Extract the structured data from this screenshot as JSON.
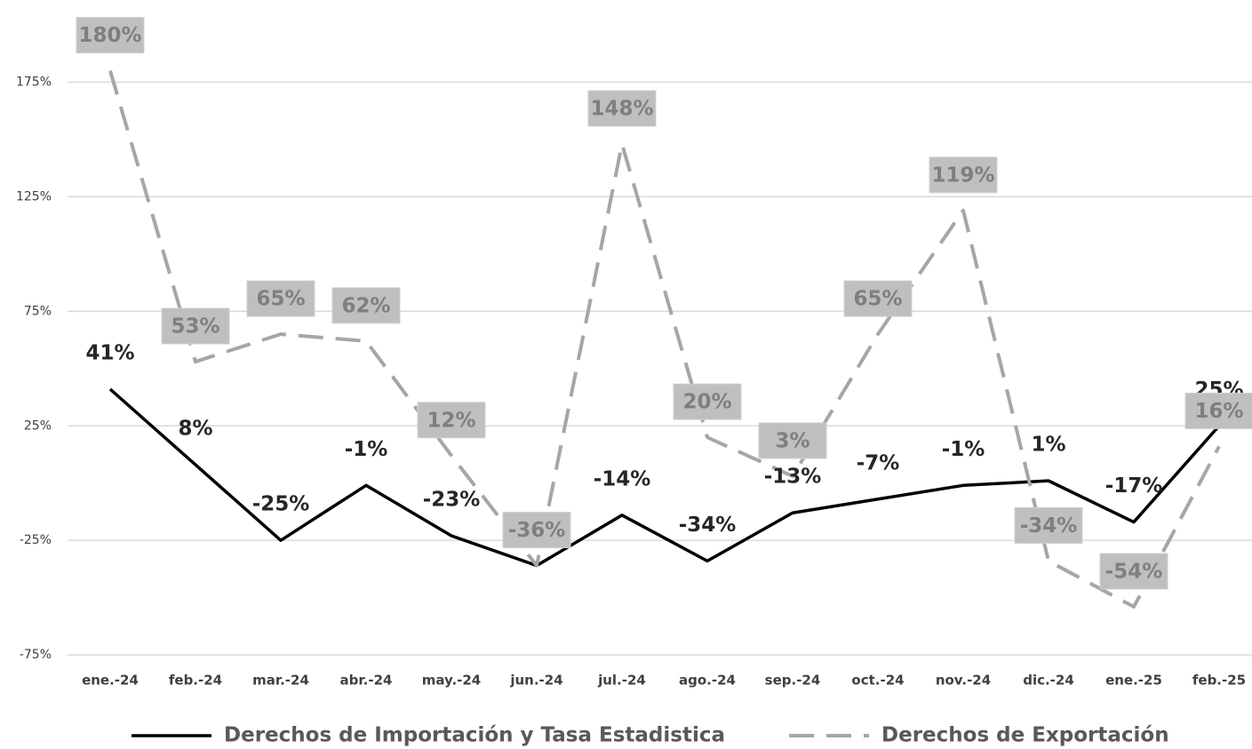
{
  "chart_data": {
    "type": "line",
    "categories": [
      "ene.-24",
      "feb.-24",
      "mar.-24",
      "abr.-24",
      "may.-24",
      "jun.-24",
      "jul.-24",
      "ago.-24",
      "sep.-24",
      "oct.-24",
      "nov.-24",
      "dic.-24",
      "ene.-25",
      "feb.-25"
    ],
    "series": [
      {
        "name": "Derechos de Importación y Tasa Estadistica",
        "color": "#000000",
        "dashed": false,
        "values": [
          41,
          8,
          -25,
          -1,
          -23,
          -36,
          -14,
          -34,
          -13,
          -7,
          -1,
          1,
          -17,
          25
        ],
        "value_labels": [
          "41%",
          "8%",
          "-25%",
          "-1%",
          "-23%",
          "-36%",
          "-14%",
          "-34%",
          "-13%",
          "-7%",
          "-1%",
          "1%",
          "-17%",
          "25%"
        ]
      },
      {
        "name": "Derechos de Exportación",
        "color": "#a6a6a6",
        "dashed": true,
        "values": [
          180,
          53,
          65,
          62,
          12,
          -36,
          148,
          20,
          3,
          65,
          119,
          -34,
          -54,
          16
        ],
        "value_labels": [
          "180%",
          "53%",
          "65%",
          "62%",
          "12%",
          "-36%",
          "148%",
          "20%",
          "3%",
          "65%",
          "119%",
          "-34%",
          "-54%",
          "16%"
        ]
      }
    ],
    "ylim": [
      -80,
      200
    ],
    "yticks": [
      {
        "value": -75,
        "label": "-75%"
      },
      {
        "value": -25,
        "label": "-25%"
      },
      {
        "value": 25,
        "label": "25%"
      },
      {
        "value": 75,
        "label": "75%"
      },
      {
        "value": 125,
        "label": "125%"
      },
      {
        "value": 175,
        "label": "175%"
      }
    ],
    "grid": true,
    "legend": "bottom"
  }
}
